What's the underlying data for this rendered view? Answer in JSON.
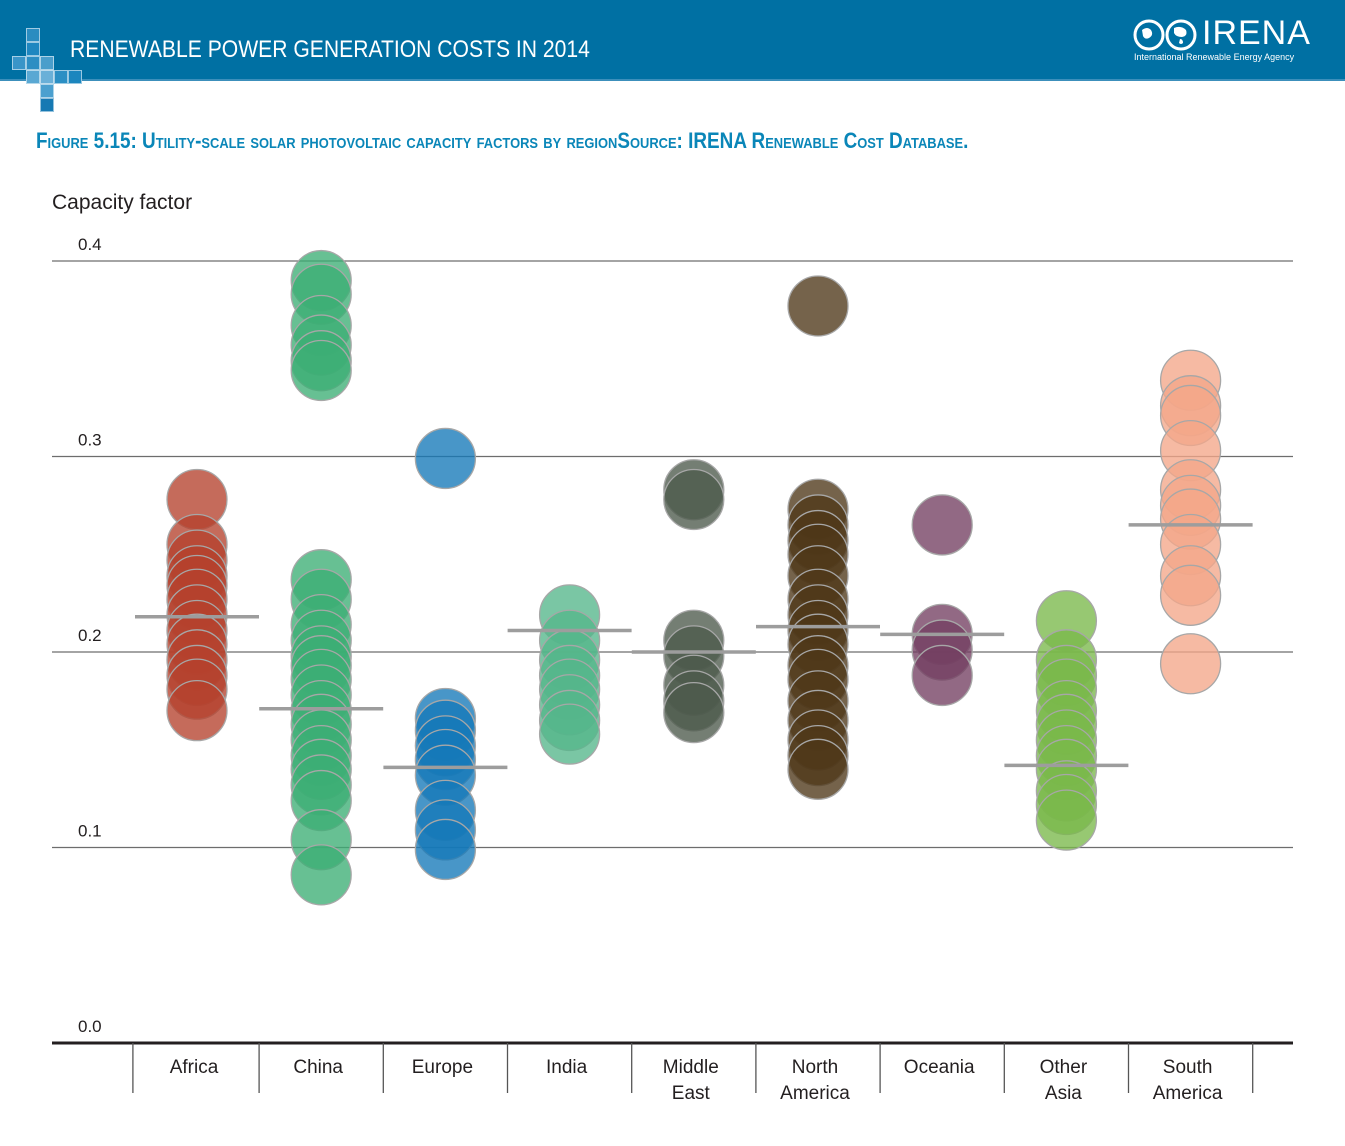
{
  "header": {
    "title": "RENEWABLE POWER GENERATION COSTS IN 2014",
    "logo_text": "IRENA",
    "logo_subtitle": "International Renewable Energy Agency",
    "logo_icon": "globe-infinity-icon",
    "decor_icon": "cross-squares-icon",
    "brand_color": "#0070a3"
  },
  "figure": {
    "title": "Figure 5.15: Utility-scale solar photovoltaic capacity factors by regionSource: IRENA Renewable Cost Database.",
    "title_color": "#0a86b8"
  },
  "chart_data": {
    "type": "scatter",
    "title": "Figure 5.15: Utility-scale solar photovoltaic capacity factors by region",
    "xlabel": "",
    "ylabel": "Capacity factor",
    "ylim": [
      0.0,
      0.4
    ],
    "yticks": [
      "0.4",
      "0.3",
      "0.2",
      "0.1",
      "0.0"
    ],
    "ytick_values": [
      0.4,
      0.3,
      0.2,
      0.1,
      0.0
    ],
    "grid": true,
    "legend": "none",
    "median_color": "#9d9d9d",
    "categories": [
      "Africa",
      "China",
      "Europe",
      "India",
      "Middle East",
      "North America",
      "Oceania",
      "Other Asia",
      "South America"
    ],
    "category_label_lines": [
      [
        "Africa"
      ],
      [
        "China"
      ],
      [
        "Europe"
      ],
      [
        "India"
      ],
      [
        "Middle",
        "East"
      ],
      [
        "North",
        "America"
      ],
      [
        "Oceania"
      ],
      [
        "Other",
        "Asia"
      ],
      [
        "South",
        "America"
      ]
    ],
    "series": [
      {
        "name": "Africa",
        "color": "#b5412d",
        "median": 0.218,
        "values": [
          0.278,
          0.255,
          0.247,
          0.239,
          0.234,
          0.227,
          0.219,
          0.211,
          0.204,
          0.196,
          0.188,
          0.181,
          0.17
        ]
      },
      {
        "name": "China",
        "color": "#3cae74",
        "median": 0.171,
        "values": [
          0.39,
          0.383,
          0.367,
          0.357,
          0.349,
          0.344,
          0.237,
          0.227,
          0.214,
          0.206,
          0.198,
          0.193,
          0.186,
          0.178,
          0.17,
          0.163,
          0.155,
          0.147,
          0.14,
          0.132,
          0.124,
          0.104,
          0.086
        ]
      },
      {
        "name": "Europe",
        "color": "#1479b8",
        "median": 0.141,
        "values": [
          0.299,
          0.166,
          0.16,
          0.152,
          0.145,
          0.137,
          0.119,
          0.109,
          0.099
        ]
      },
      {
        "name": "India",
        "color": "#55b68a",
        "median": 0.211,
        "values": [
          0.219,
          0.206,
          0.196,
          0.188,
          0.181,
          0.173,
          0.165,
          0.158
        ]
      },
      {
        "name": "Middle East",
        "color": "#4d5a4b",
        "median": 0.2,
        "values": [
          0.283,
          0.278,
          0.206,
          0.198,
          0.183,
          0.175,
          0.169
        ]
      },
      {
        "name": "North America",
        "color": "#4e3718",
        "median": 0.213,
        "values": [
          0.377,
          0.273,
          0.265,
          0.257,
          0.25,
          0.239,
          0.227,
          0.219,
          0.211,
          0.204,
          0.193,
          0.186,
          0.175,
          0.165,
          0.155,
          0.147,
          0.14
        ]
      },
      {
        "name": "Oceania",
        "color": "#733f62",
        "median": 0.209,
        "values": [
          0.265,
          0.209,
          0.201,
          0.188
        ]
      },
      {
        "name": "Other Asia",
        "color": "#7ab84a",
        "median": 0.142,
        "values": [
          0.216,
          0.196,
          0.188,
          0.181,
          0.17,
          0.163,
          0.155,
          0.147,
          0.14,
          0.129,
          0.122,
          0.114
        ]
      },
      {
        "name": "South America",
        "color": "#f3a689",
        "median": 0.265,
        "values": [
          0.339,
          0.326,
          0.321,
          0.303,
          0.283,
          0.275,
          0.268,
          0.255,
          0.239,
          0.229,
          0.194
        ]
      }
    ]
  }
}
